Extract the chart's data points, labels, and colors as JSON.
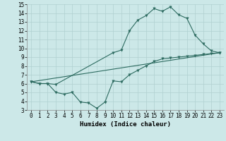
{
  "bg_color": "#cce8e8",
  "line_color": "#2d6b60",
  "grid_color": "#b0d0d0",
  "xlabel": "Humidex (Indice chaleur)",
  "ylim": [
    3,
    15
  ],
  "xlim": [
    -0.5,
    23.5
  ],
  "yticks": [
    3,
    4,
    5,
    6,
    7,
    8,
    9,
    10,
    11,
    12,
    13,
    14,
    15
  ],
  "xticks": [
    0,
    1,
    2,
    3,
    4,
    5,
    6,
    7,
    8,
    9,
    10,
    11,
    12,
    13,
    14,
    15,
    16,
    17,
    18,
    19,
    20,
    21,
    22,
    23
  ],
  "line1_x": [
    0,
    1,
    2,
    3,
    10,
    11,
    12,
    13,
    14,
    15,
    16,
    17,
    18,
    19,
    20,
    21,
    22,
    23
  ],
  "line1_y": [
    6.2,
    6.0,
    6.0,
    5.9,
    9.5,
    9.8,
    12.0,
    13.2,
    13.7,
    14.5,
    14.2,
    14.7,
    13.8,
    13.4,
    11.5,
    10.5,
    9.7,
    9.5
  ],
  "line2_x": [
    0,
    23
  ],
  "line2_y": [
    6.2,
    9.5
  ],
  "line3_x": [
    0,
    1,
    2,
    3,
    4,
    5,
    6,
    7,
    8,
    9,
    10,
    11,
    12,
    13,
    14,
    15,
    16,
    17,
    18,
    19,
    20,
    21,
    22,
    23
  ],
  "line3_y": [
    6.2,
    6.0,
    6.0,
    5.0,
    4.8,
    5.0,
    3.9,
    3.8,
    3.2,
    3.9,
    6.3,
    6.2,
    7.0,
    7.5,
    8.0,
    8.5,
    8.8,
    8.9,
    9.0,
    9.1,
    9.2,
    9.3,
    9.4,
    9.5
  ],
  "tick_fontsize": 5.5,
  "xlabel_fontsize": 6.5,
  "marker_size": 2.5
}
